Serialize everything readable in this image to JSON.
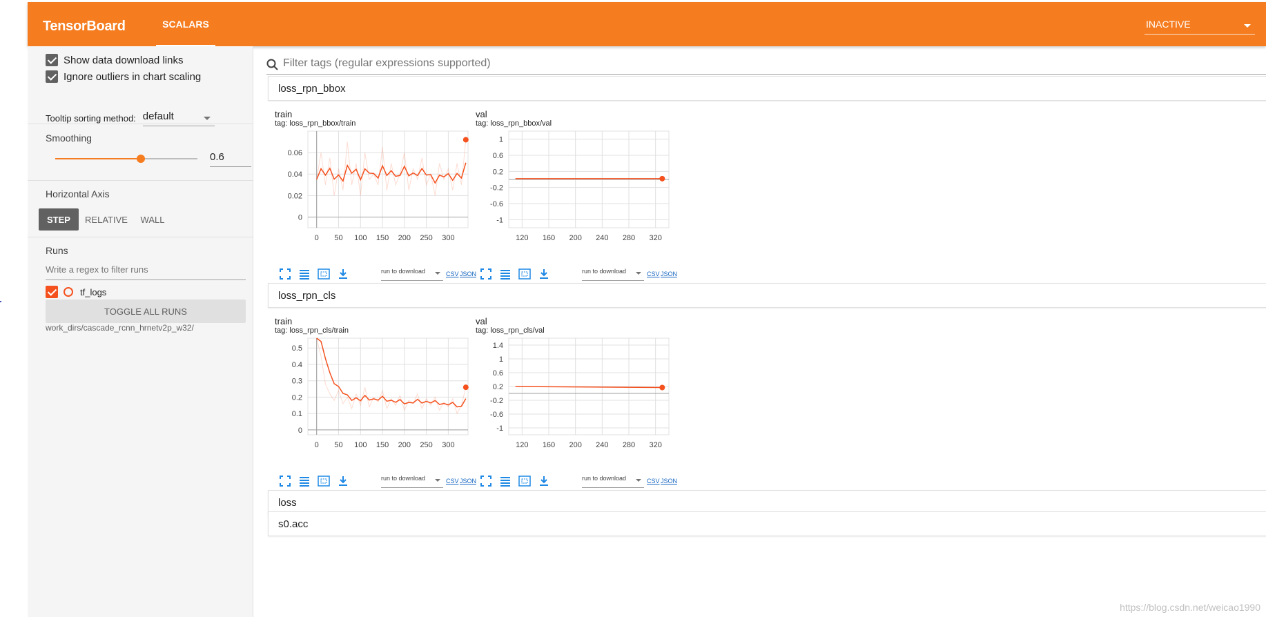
{
  "header": {
    "brand": "TensorBoard",
    "tab": "SCALARS",
    "run_select": "INACTIVE"
  },
  "sidebar": {
    "show_download_links": "Show data download links",
    "ignore_outliers": "Ignore outliers in chart scaling",
    "tooltip_label": "Tooltip sorting method:",
    "tooltip_value": "default",
    "smoothing_title": "Smoothing",
    "smoothing_value": "0.6",
    "smoothing_level": 0.6,
    "horizontal_axis_title": "Horizontal Axis",
    "axis_buttons": [
      "STEP",
      "RELATIVE",
      "WALL"
    ],
    "runs_title": "Runs",
    "runs_filter_placeholder": "Write a regex to filter runs",
    "run_name": "tf_logs",
    "toggle_all": "TOGGLE ALL RUNS",
    "workdir": "work_dirs/cascade_rcnn_hrnetv2p_w32/"
  },
  "main": {
    "filter_placeholder": "Filter tags (regular expressions supported)",
    "categories": [
      {
        "name": "loss_rpn_bbox",
        "charts": [
          {
            "title": "train",
            "tag": "tag: loss_rpn_bbox/train"
          },
          {
            "title": "val",
            "tag": "tag: loss_rpn_bbox/val"
          }
        ]
      },
      {
        "name": "loss_rpn_cls",
        "charts": [
          {
            "title": "train",
            "tag": "tag: loss_rpn_cls/train"
          },
          {
            "title": "val",
            "tag": "tag: loss_rpn_cls/val"
          }
        ]
      },
      {
        "name": "loss"
      },
      {
        "name": "s0.acc"
      }
    ],
    "download_select": "run to download",
    "csv": "CSV",
    "json": "JSON"
  },
  "watermark": "https://blog.csdn.net/weicao1990",
  "colors": {
    "accent": "#f57c1f",
    "series": "#f4511e"
  },
  "chart_data": [
    {
      "type": "line",
      "title": "train",
      "x_ticks": [
        0,
        50,
        100,
        150,
        200,
        250,
        300
      ],
      "y_ticks": [
        0,
        0.02,
        0.04,
        0.06
      ],
      "xlim": [
        -20,
        345
      ],
      "ylim": [
        -0.01,
        0.08
      ],
      "x": [
        0,
        10,
        20,
        30,
        40,
        50,
        60,
        70,
        80,
        90,
        100,
        110,
        120,
        130,
        140,
        150,
        160,
        170,
        180,
        190,
        200,
        210,
        220,
        230,
        240,
        250,
        260,
        270,
        280,
        290,
        300,
        310,
        320,
        330,
        340
      ],
      "y": [
        0.035,
        0.06,
        0.03,
        0.055,
        0.02,
        0.045,
        0.025,
        0.07,
        0.03,
        0.05,
        0.02,
        0.06,
        0.035,
        0.04,
        0.03,
        0.065,
        0.025,
        0.05,
        0.03,
        0.04,
        0.06,
        0.025,
        0.045,
        0.035,
        0.055,
        0.03,
        0.04,
        0.02,
        0.05,
        0.035,
        0.045,
        0.025,
        0.05,
        0.03,
        0.072
      ]
    },
    {
      "type": "line",
      "title": "val",
      "x_ticks": [
        120,
        160,
        200,
        240,
        280,
        320
      ],
      "y_ticks": [
        -1,
        -0.6,
        -0.2,
        0.2,
        0.6,
        1
      ],
      "xlim": [
        100,
        340
      ],
      "ylim": [
        -1.2,
        1.2
      ],
      "x": [
        110,
        330
      ],
      "y": [
        0.02,
        0.02
      ]
    },
    {
      "type": "line",
      "title": "train",
      "x_ticks": [
        0,
        50,
        100,
        150,
        200,
        250,
        300
      ],
      "y_ticks": [
        0,
        0.1,
        0.2,
        0.3,
        0.4,
        0.5
      ],
      "xlim": [
        -20,
        345
      ],
      "ylim": [
        -0.03,
        0.56
      ],
      "x": [
        0,
        10,
        20,
        30,
        40,
        50,
        60,
        70,
        80,
        90,
        100,
        110,
        120,
        130,
        140,
        150,
        160,
        170,
        180,
        190,
        200,
        210,
        220,
        230,
        240,
        250,
        260,
        270,
        280,
        290,
        300,
        310,
        320,
        330,
        340
      ],
      "y": [
        0.6,
        0.45,
        0.28,
        0.22,
        0.18,
        0.24,
        0.16,
        0.2,
        0.13,
        0.22,
        0.15,
        0.26,
        0.14,
        0.2,
        0.17,
        0.24,
        0.13,
        0.19,
        0.15,
        0.21,
        0.12,
        0.18,
        0.16,
        0.22,
        0.13,
        0.19,
        0.15,
        0.2,
        0.12,
        0.17,
        0.14,
        0.19,
        0.1,
        0.15,
        0.26
      ]
    },
    {
      "type": "line",
      "title": "val",
      "x_ticks": [
        120,
        160,
        200,
        240,
        280,
        320
      ],
      "y_ticks": [
        -1,
        -0.6,
        -0.2,
        0.2,
        0.6,
        1,
        1.4
      ],
      "xlim": [
        100,
        340
      ],
      "ylim": [
        -1.2,
        1.6
      ],
      "x": [
        110,
        330
      ],
      "y": [
        0.2,
        0.17
      ]
    }
  ]
}
